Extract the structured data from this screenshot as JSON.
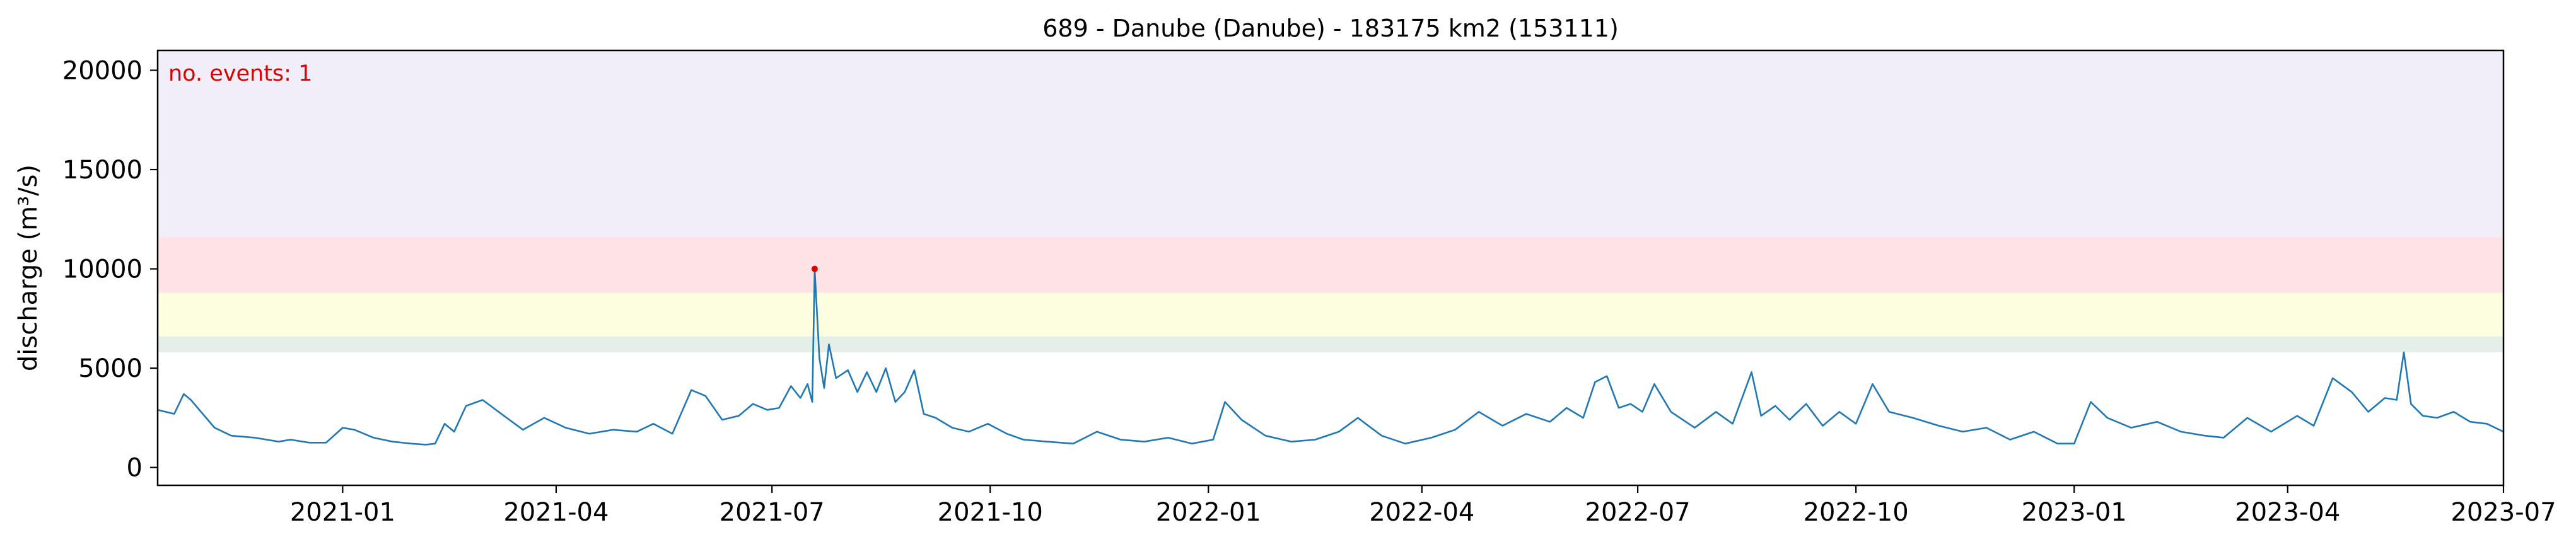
{
  "chart_data": {
    "type": "line",
    "title": "689 - Danube (Danube) - 183175 km2 (153111)",
    "xlabel": "",
    "ylabel": "discharge (m³/s)",
    "xlim": [
      "2020-10-15",
      "2023-07-01"
    ],
    "ylim": [
      -900,
      21000
    ],
    "x_ticks": [
      "2021-01",
      "2021-04",
      "2021-07",
      "2021-10",
      "2022-01",
      "2022-04",
      "2022-07",
      "2022-10",
      "2023-01",
      "2023-04",
      "2023-07"
    ],
    "x_tick_dates": [
      "2021-01-01",
      "2021-04-01",
      "2021-07-01",
      "2021-10-01",
      "2022-01-01",
      "2022-04-01",
      "2022-07-01",
      "2022-10-01",
      "2023-01-01",
      "2023-04-01",
      "2023-07-01"
    ],
    "y_ticks": [
      0,
      5000,
      10000,
      15000,
      20000
    ],
    "grid": false,
    "annotation": {
      "text": "no. events: 1",
      "color": "#dd0000"
    },
    "threshold_bands": [
      {
        "from": 5800,
        "to": 6600,
        "color": "#e3efe8"
      },
      {
        "from": 6600,
        "to": 8800,
        "color": "#fdfde0"
      },
      {
        "from": 8800,
        "to": 11600,
        "color": "#fde2e6"
      },
      {
        "from": 11600,
        "to": 21000,
        "color": "#f1eefa"
      }
    ],
    "series": [
      {
        "color": "#1f77b4",
        "x": [
          "2020-10-15",
          "2020-10-22",
          "2020-10-26",
          "2020-10-29",
          "2020-11-03",
          "2020-11-08",
          "2020-11-15",
          "2020-11-25",
          "2020-12-05",
          "2020-12-10",
          "2020-12-18",
          "2020-12-25",
          "2021-01-01",
          "2021-01-06",
          "2021-01-14",
          "2021-01-22",
          "2021-01-30",
          "2021-02-05",
          "2021-02-09",
          "2021-02-13",
          "2021-02-17",
          "2021-02-22",
          "2021-03-01",
          "2021-03-10",
          "2021-03-18",
          "2021-03-27",
          "2021-04-05",
          "2021-04-15",
          "2021-04-25",
          "2021-05-05",
          "2021-05-12",
          "2021-05-20",
          "2021-05-28",
          "2021-06-03",
          "2021-06-10",
          "2021-06-17",
          "2021-06-23",
          "2021-06-29",
          "2021-07-04",
          "2021-07-09",
          "2021-07-13",
          "2021-07-16",
          "2021-07-18",
          "2021-07-19",
          "2021-07-21",
          "2021-07-23",
          "2021-07-25",
          "2021-07-28",
          "2021-08-02",
          "2021-08-06",
          "2021-08-10",
          "2021-08-14",
          "2021-08-18",
          "2021-08-22",
          "2021-08-26",
          "2021-08-30",
          "2021-09-03",
          "2021-09-08",
          "2021-09-15",
          "2021-09-22",
          "2021-09-30",
          "2021-10-08",
          "2021-10-15",
          "2021-10-25",
          "2021-11-05",
          "2021-11-15",
          "2021-11-25",
          "2021-12-05",
          "2021-12-15",
          "2021-12-25",
          "2022-01-03",
          "2022-01-08",
          "2022-01-15",
          "2022-01-25",
          "2022-02-05",
          "2022-02-15",
          "2022-02-25",
          "2022-03-05",
          "2022-03-15",
          "2022-03-25",
          "2022-04-05",
          "2022-04-15",
          "2022-04-25",
          "2022-05-05",
          "2022-05-15",
          "2022-05-25",
          "2022-06-01",
          "2022-06-08",
          "2022-06-13",
          "2022-06-18",
          "2022-06-23",
          "2022-06-28",
          "2022-07-03",
          "2022-07-08",
          "2022-07-15",
          "2022-07-25",
          "2022-08-03",
          "2022-08-10",
          "2022-08-18",
          "2022-08-22",
          "2022-08-28",
          "2022-09-03",
          "2022-09-10",
          "2022-09-17",
          "2022-09-24",
          "2022-10-01",
          "2022-10-08",
          "2022-10-15",
          "2022-10-25",
          "2022-11-05",
          "2022-11-15",
          "2022-11-25",
          "2022-12-05",
          "2022-12-15",
          "2022-12-25",
          "2023-01-01",
          "2023-01-08",
          "2023-01-15",
          "2023-01-25",
          "2023-02-05",
          "2023-02-15",
          "2023-02-25",
          "2023-03-05",
          "2023-03-15",
          "2023-03-25",
          "2023-04-05",
          "2023-04-12",
          "2023-04-20",
          "2023-04-28",
          "2023-05-05",
          "2023-05-12",
          "2023-05-17",
          "2023-05-20",
          "2023-05-23",
          "2023-05-28",
          "2023-06-03",
          "2023-06-10",
          "2023-06-17",
          "2023-06-24",
          "2023-07-01"
        ],
        "y": [
          2900,
          2700,
          3700,
          3400,
          2700,
          2000,
          1600,
          1500,
          1300,
          1400,
          1250,
          1250,
          2000,
          1900,
          1500,
          1300,
          1200,
          1150,
          1200,
          2200,
          1800,
          3100,
          3400,
          2600,
          1900,
          2500,
          2000,
          1700,
          1900,
          1800,
          2200,
          1700,
          3900,
          3600,
          2400,
          2600,
          3200,
          2900,
          3000,
          4100,
          3500,
          4200,
          3300,
          10000,
          5500,
          4000,
          6200,
          4500,
          4900,
          3800,
          4800,
          3800,
          5000,
          3300,
          3800,
          4900,
          2700,
          2500,
          2000,
          1800,
          2200,
          1700,
          1400,
          1300,
          1200,
          1800,
          1400,
          1300,
          1500,
          1200,
          1400,
          3300,
          2400,
          1600,
          1300,
          1400,
          1800,
          2500,
          1600,
          1200,
          1500,
          1900,
          2800,
          2100,
          2700,
          2300,
          3000,
          2500,
          4300,
          4600,
          3000,
          3200,
          2800,
          4200,
          2800,
          2000,
          2800,
          2200,
          4800,
          2600,
          3100,
          2400,
          3200,
          2100,
          2800,
          2200,
          4200,
          2800,
          2500,
          2100,
          1800,
          2000,
          1400,
          1800,
          1200,
          1200,
          3300,
          2500,
          2000,
          2300,
          1800,
          1600,
          1500,
          2500,
          1800,
          2600,
          2100,
          4500,
          3800,
          2800,
          3500,
          3400,
          5800,
          3200,
          2600,
          2500,
          2800,
          2300,
          2200,
          1800
        ]
      }
    ],
    "events": [
      {
        "x": "2021-07-19",
        "y": 10000,
        "color": "#e00000"
      }
    ]
  }
}
